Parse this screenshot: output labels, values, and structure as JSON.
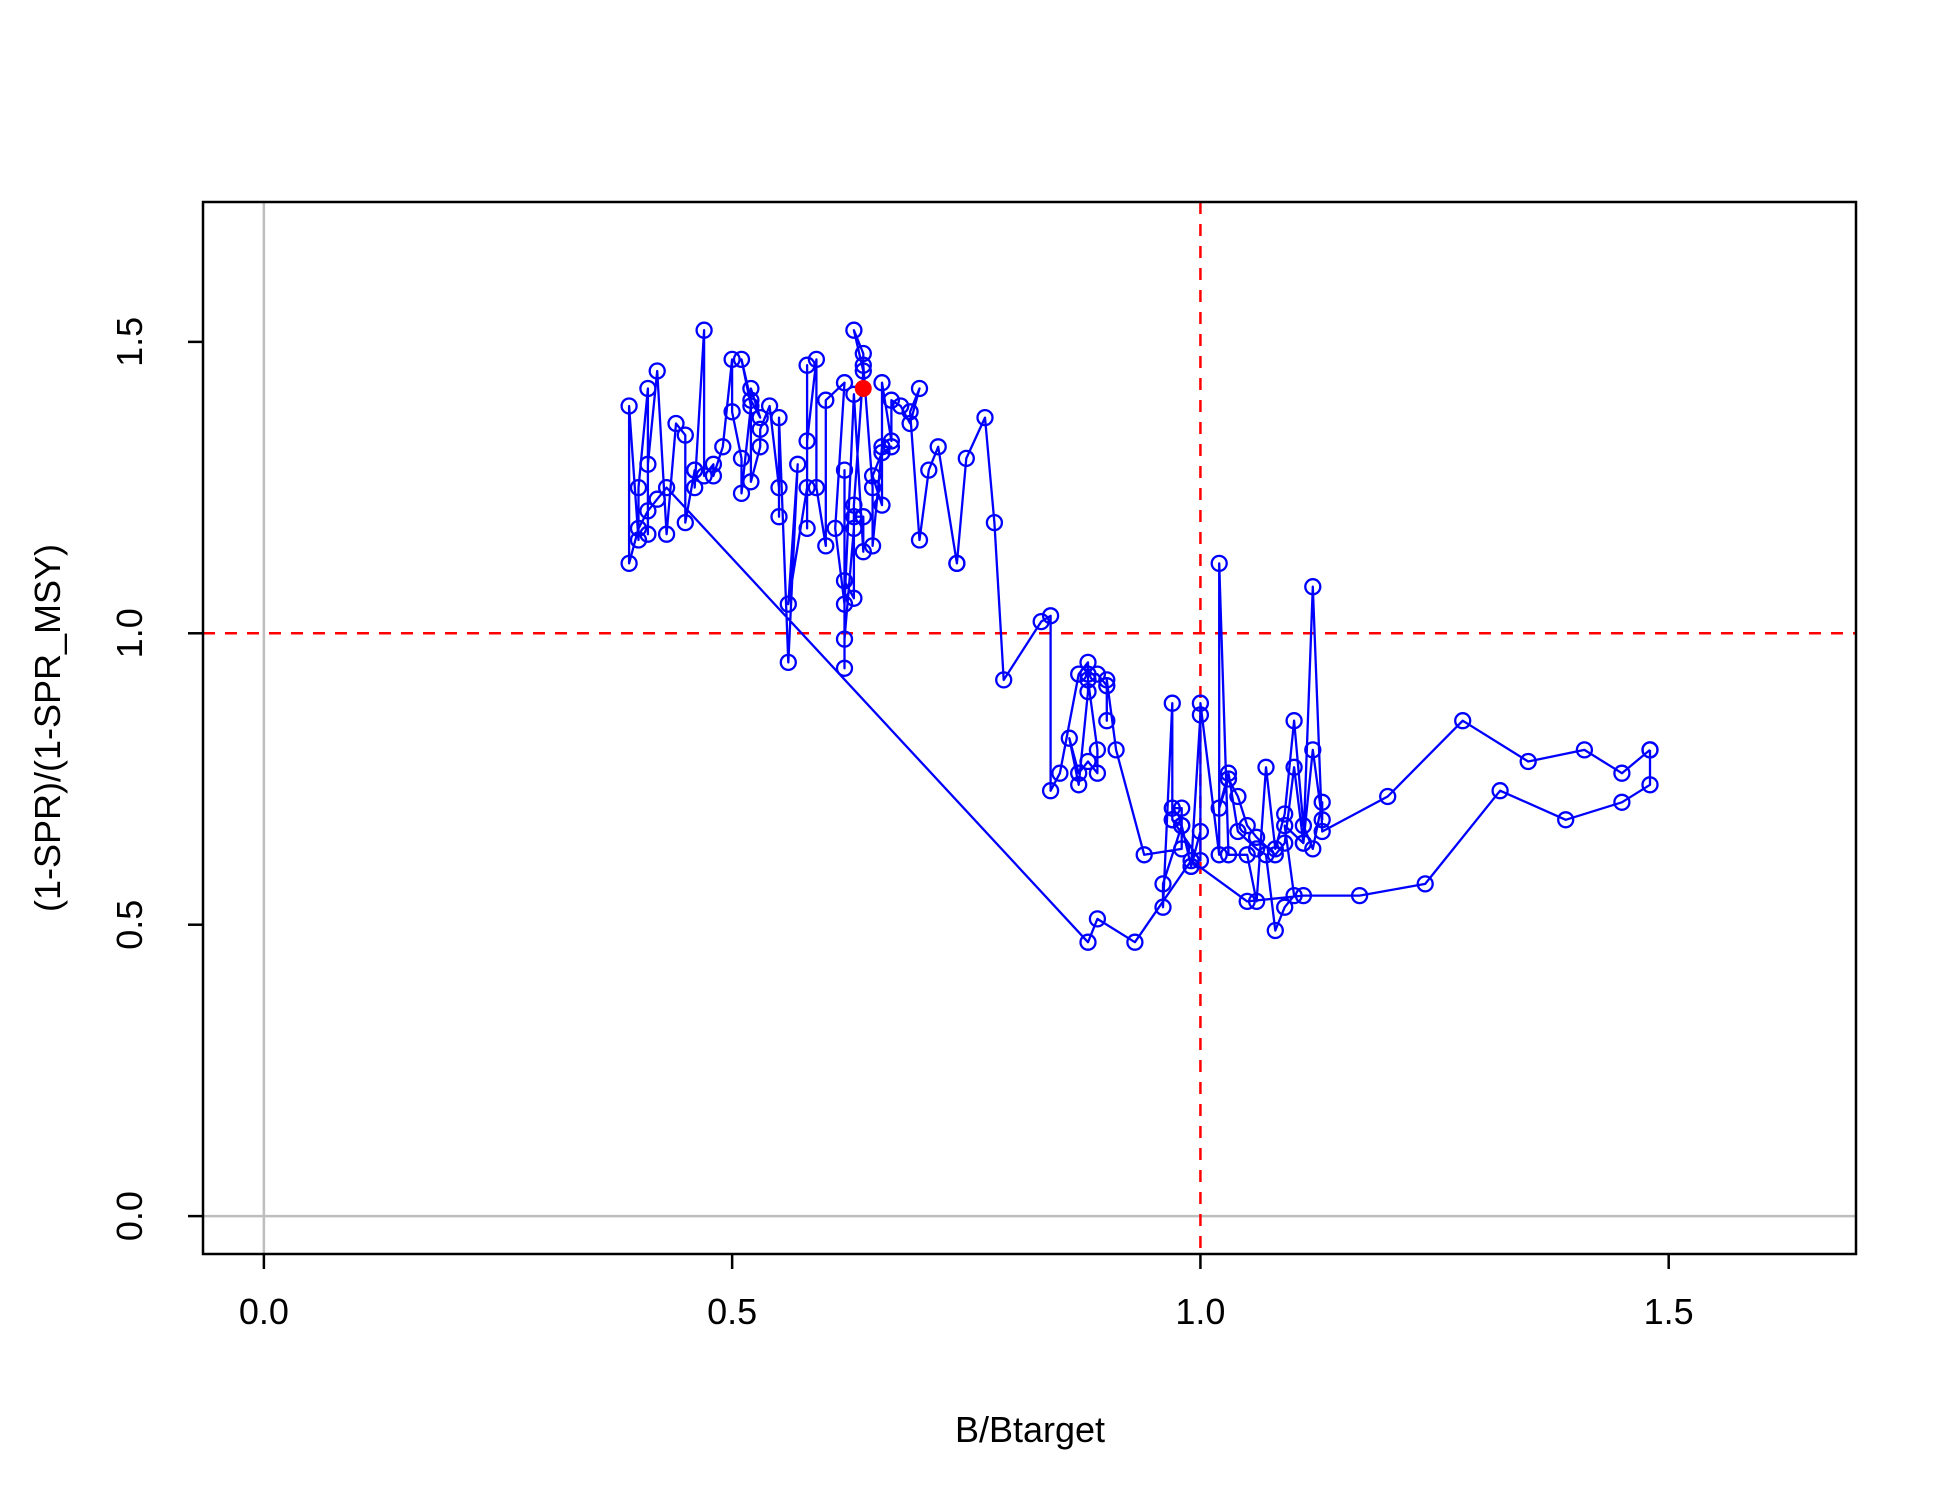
{
  "chart_data": {
    "type": "line",
    "title": "",
    "xlabel": "B/Btarget",
    "ylabel": "(1-SPR)/(1-SPR_MSY)",
    "xlim": [
      -0.065,
      1.7
    ],
    "ylim": [
      -0.065,
      1.74
    ],
    "x_ticks": [
      "0.0",
      "0.5",
      "1.0",
      "1.5"
    ],
    "y_ticks": [
      "0.0",
      "0.5",
      "1.0",
      "1.5"
    ],
    "x_tick_values": [
      0,
      0.5,
      1.0,
      1.5
    ],
    "y_tick_values": [
      0,
      0.5,
      1.0,
      1.5
    ],
    "grid": false,
    "colors": {
      "series": "#0000ff",
      "highlight": "#ff0000",
      "reference_lines": "#ff0000",
      "zero_lines": "#bebebe",
      "frame": "#000000"
    },
    "reference_lines": {
      "x": 1.0,
      "y": 1.0,
      "style": "dashed"
    },
    "zero_lines": {
      "x": 0,
      "y": 0
    },
    "series": [
      {
        "marker": "open-circle",
        "x": [
          1.48,
          1.45,
          1.41,
          1.35,
          1.28,
          1.2,
          1.13,
          1.12,
          1.11,
          1.09,
          1.1,
          1.09,
          1.08,
          1.07,
          1.06,
          1.04,
          1.03,
          1.02,
          1.03,
          1.04,
          1.05,
          1.06,
          1.08,
          1.09,
          1.1,
          1.11,
          1.12,
          1.13,
          1.13,
          1.12,
          1.11,
          1.1,
          1.09,
          1.08,
          1.07,
          1.06,
          1.05,
          1.03,
          1.02,
          1.02,
          1.0,
          1.0,
          0.99,
          0.98,
          0.97,
          0.97,
          0.96,
          0.96,
          0.98,
          0.99,
          1.0,
          1.0,
          0.97,
          0.97,
          0.98,
          0.98,
          0.94,
          0.91,
          0.9,
          0.9,
          0.9,
          0.89,
          0.88,
          0.88,
          0.89,
          0.89,
          0.88,
          0.87,
          0.86,
          0.87,
          0.88,
          0.88,
          0.87,
          0.85,
          0.84,
          0.84,
          0.83,
          0.79,
          0.78,
          0.77,
          0.75,
          0.74,
          0.74,
          0.72,
          0.71,
          0.7,
          0.69,
          0.7,
          0.69,
          0.68,
          0.67,
          0.67,
          0.66,
          0.66,
          0.65,
          0.66,
          0.67,
          0.66,
          0.65,
          0.65,
          0.64,
          0.64,
          0.63,
          0.64,
          0.63,
          0.63,
          0.62,
          0.62,
          0.62,
          0.62,
          0.63,
          0.63,
          0.64,
          0.64,
          0.63,
          0.62,
          0.61,
          0.62,
          0.6,
          0.6,
          0.59,
          0.59,
          0.58,
          0.58,
          0.58,
          0.58,
          0.56,
          0.57,
          0.56,
          0.55,
          0.55,
          0.55,
          0.54,
          0.53,
          0.53,
          0.52,
          0.52,
          0.53,
          0.52,
          0.51,
          0.52,
          0.51,
          0.51,
          0.5,
          0.5,
          0.49,
          0.48,
          0.48,
          0.47,
          0.47,
          0.46,
          0.46,
          0.46,
          0.45,
          0.45,
          0.44,
          0.43,
          0.42,
          0.41,
          0.41,
          0.41,
          0.4,
          0.4,
          0.39,
          0.39,
          0.4,
          0.41,
          0.42,
          0.43,
          0.88,
          0.89,
          0.93,
          0.99,
          1.05,
          1.11,
          1.17,
          1.24,
          1.32,
          1.39,
          1.45,
          1.48,
          1.48
        ],
        "y": [
          0.8,
          0.76,
          0.8,
          0.78,
          0.85,
          0.72,
          0.66,
          1.08,
          0.64,
          0.67,
          0.55,
          0.53,
          0.49,
          0.62,
          0.63,
          0.66,
          0.76,
          0.7,
          0.75,
          0.72,
          0.67,
          0.65,
          0.62,
          0.64,
          0.77,
          0.64,
          0.8,
          0.68,
          0.71,
          0.63,
          0.67,
          0.85,
          0.69,
          0.63,
          0.77,
          0.54,
          0.62,
          0.62,
          1.12,
          0.62,
          0.88,
          0.66,
          0.6,
          0.67,
          0.68,
          0.88,
          0.53,
          0.57,
          0.67,
          0.6,
          0.86,
          0.61,
          0.68,
          0.7,
          0.7,
          0.63,
          0.62,
          0.8,
          0.92,
          0.85,
          0.91,
          0.93,
          0.93,
          0.92,
          0.8,
          0.76,
          0.78,
          0.76,
          0.82,
          0.74,
          0.9,
          0.95,
          0.93,
          0.76,
          0.73,
          1.03,
          1.02,
          0.92,
          1.19,
          1.37,
          1.3,
          1.12,
          1.12,
          1.32,
          1.28,
          1.16,
          1.38,
          1.42,
          1.36,
          1.39,
          1.4,
          1.33,
          1.43,
          1.22,
          1.27,
          1.31,
          1.32,
          1.32,
          1.15,
          1.25,
          1.46,
          1.48,
          1.52,
          1.45,
          1.22,
          1.06,
          1.09,
          1.28,
          0.94,
          0.99,
          1.18,
          1.2,
          1.2,
          1.14,
          1.41,
          1.05,
          1.18,
          1.43,
          1.4,
          1.15,
          1.25,
          1.47,
          1.33,
          1.46,
          1.18,
          1.25,
          1.05,
          1.29,
          0.95,
          1.37,
          1.2,
          1.25,
          1.39,
          1.35,
          1.32,
          1.26,
          1.42,
          1.37,
          1.4,
          1.47,
          1.39,
          1.24,
          1.3,
          1.38,
          1.47,
          1.32,
          1.27,
          1.29,
          1.27,
          1.52,
          1.25,
          1.28,
          1.28,
          1.19,
          1.34,
          1.36,
          1.17,
          1.45,
          1.29,
          1.17,
          1.42,
          1.25,
          1.16,
          1.39,
          1.12,
          1.18,
          1.21,
          1.23,
          1.25,
          0.47,
          0.51,
          0.47,
          0.61,
          0.54,
          0.55,
          0.55,
          0.57,
          0.73,
          0.68,
          0.71,
          0.74,
          0.8
        ]
      }
    ],
    "highlight_point": {
      "x": 0.64,
      "y": 1.42,
      "marker": "filled-circle"
    }
  }
}
